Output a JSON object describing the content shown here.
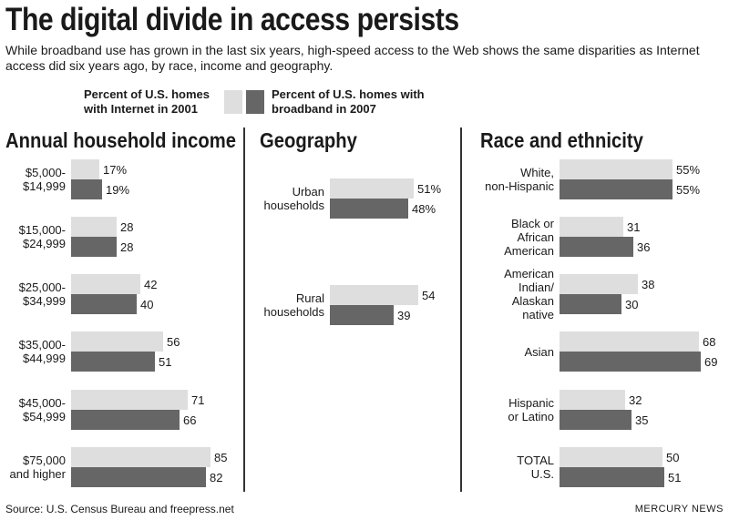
{
  "title": "The digital divide in access persists",
  "subtitle": "While broadband use has grown in the last six years, high-speed access to the Web shows the same disparities as Internet access did six years ago, by race, income and geography.",
  "legend": {
    "internet_2001": "Percent of U.S. homes with Internet in 2001",
    "broadband_2007": "Percent of U.S. homes with broadband in 2007"
  },
  "colors": {
    "internet_2001": "#dedede",
    "broadband_2007": "#666666"
  },
  "chart_data": [
    {
      "type": "bar",
      "orientation": "horizontal",
      "title": "Annual household income",
      "categories": [
        "$5,000-\n$14,999",
        "$15,000-\n$24,999",
        "$25,000-\n$34,999",
        "$35,000-\n$44,999",
        "$45,000-\n$54,999",
        "$75,000\nand higher"
      ],
      "series": [
        {
          "name": "Percent of U.S. homes with Internet in 2001",
          "values": [
            17,
            28,
            42,
            56,
            71,
            85
          ],
          "labels": [
            "17%",
            "28",
            "42",
            "56",
            "71",
            "85"
          ]
        },
        {
          "name": "Percent of U.S. homes with broadband in 2007",
          "values": [
            19,
            28,
            40,
            51,
            66,
            82
          ],
          "labels": [
            "19%",
            "28",
            "40",
            "51",
            "66",
            "82"
          ]
        }
      ]
    },
    {
      "type": "bar",
      "orientation": "horizontal",
      "title": "Geography",
      "categories": [
        "Urban\nhouseholds",
        "Rural\nhouseholds"
      ],
      "series": [
        {
          "name": "Percent of U.S. homes with Internet in 2001",
          "values": [
            51,
            54
          ],
          "labels": [
            "51%",
            "54"
          ]
        },
        {
          "name": "Percent of U.S. homes with broadband in 2007",
          "values": [
            48,
            39
          ],
          "labels": [
            "48%",
            "39"
          ]
        }
      ]
    },
    {
      "type": "bar",
      "orientation": "horizontal",
      "title": "Race and ethnicity",
      "categories": [
        "White,\nnon-Hispanic",
        "Black or\nAfrican\nAmerican",
        "American\nIndian/\nAlaskan\nnative",
        "Asian",
        "Hispanic\nor Latino",
        "TOTAL\nU.S."
      ],
      "series": [
        {
          "name": "Percent of U.S. homes with Internet in 2001",
          "values": [
            55,
            31,
            38,
            68,
            32,
            50
          ],
          "labels": [
            "55%",
            "31",
            "38",
            "68",
            "32",
            "50"
          ]
        },
        {
          "name": "Percent of U.S. homes with broadband in 2007",
          "values": [
            55,
            36,
            30,
            69,
            35,
            51
          ],
          "labels": [
            "55%",
            "36",
            "30",
            "69",
            "35",
            "51"
          ]
        }
      ]
    }
  ],
  "source": "Source: U.S. Census Bureau and freepress.net",
  "credit": "MERCURY NEWS"
}
